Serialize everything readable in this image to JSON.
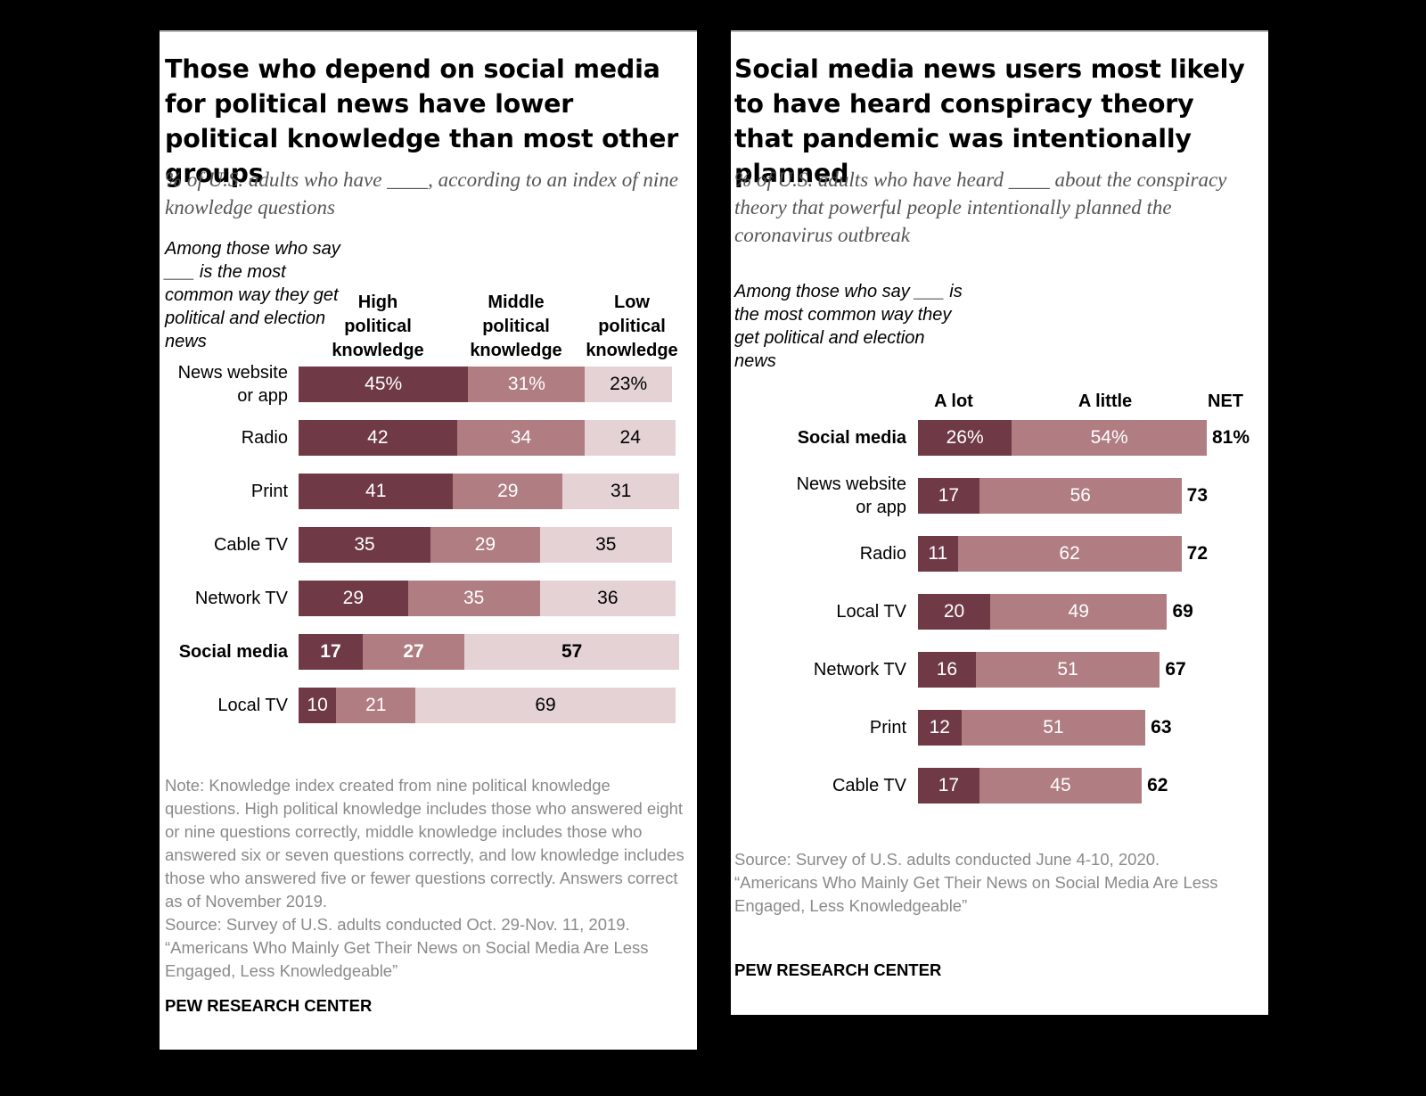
{
  "colors": {
    "high": "#6f3a46",
    "middle": "#b07d83",
    "low": "#e5d2d5",
    "a_lot": "#6f3a46",
    "a_little": "#b07d83",
    "text_dark": "#ffffff",
    "text_light": "#000000"
  },
  "left": {
    "title": "Those who depend on social media for political news have lower political knowledge than most other groups",
    "subtitle": "% of U.S. adults who have ____, according to an index of nine knowledge questions",
    "among": "Among those who say ___ is the most common way they get political and election news",
    "col_heads": [
      "High political knowledge",
      "Middle political knowledge",
      "Low political knowledge"
    ],
    "note": "Note: Knowledge index created from nine political knowledge questions. High political knowledge includes those who answered eight or nine questions correctly, middle knowledge includes those who answered six or seven questions correctly, and low knowledge includes those who answered five or fewer questions correctly. Answers correct as of November 2019.",
    "source": "Source: Survey of U.S. adults conducted Oct. 29-Nov. 11, 2019.",
    "report": "“Americans Who Mainly Get Their News on Social Media Are Less Engaged, Less Knowledgeable”",
    "brand": "PEW RESEARCH CENTER"
  },
  "right": {
    "title": "Social media news users most likely to have heard conspiracy theory that pandemic was intentionally planned",
    "subtitle": "% of U.S. adults who have heard ____ about the conspiracy theory that powerful people intentionally planned the coronavirus outbreak",
    "among": "Among those who say ___ is the most common way they get political and election news",
    "col_heads": [
      "A lot",
      "A little",
      "NET"
    ],
    "source": "Source: Survey of U.S. adults conducted June 4-10, 2020.",
    "report": "“Americans Who Mainly Get Their News on Social Media Are Less Engaged, Less Knowledgeable”",
    "brand": "PEW RESEARCH CENTER"
  },
  "chart_data": [
    {
      "type": "bar",
      "orientation": "horizontal",
      "stacked": true,
      "title": "Those who depend on social media for political news have lower political knowledge than most other groups",
      "categories": [
        "News website or app",
        "Radio",
        "Print",
        "Cable TV",
        "Network TV",
        "Social media",
        "Local TV"
      ],
      "highlight": "Social media",
      "series": [
        {
          "name": "High political knowledge",
          "values": [
            45,
            42,
            41,
            35,
            29,
            17,
            10
          ],
          "labels": [
            "45%",
            "42",
            "41",
            "35",
            "29",
            "17",
            "10"
          ]
        },
        {
          "name": "Middle political knowledge",
          "values": [
            31,
            34,
            29,
            29,
            35,
            27,
            21
          ],
          "labels": [
            "31%",
            "34",
            "29",
            "29",
            "35",
            "27",
            "21"
          ]
        },
        {
          "name": "Low political knowledge",
          "values": [
            23,
            24,
            31,
            35,
            36,
            57,
            69
          ],
          "labels": [
            "23%",
            "24",
            "31",
            "35",
            "36",
            "57",
            "69"
          ]
        }
      ]
    },
    {
      "type": "bar",
      "orientation": "horizontal",
      "stacked": true,
      "title": "Social media news users most likely to have heard conspiracy theory that pandemic was intentionally planned",
      "categories": [
        "Social media",
        "News website or app",
        "Radio",
        "Local TV",
        "Network TV",
        "Print",
        "Cable TV"
      ],
      "highlight": "Social media",
      "series": [
        {
          "name": "A lot",
          "values": [
            26,
            17,
            11,
            20,
            16,
            12,
            17
          ],
          "labels": [
            "26%",
            "17",
            "11",
            "20",
            "16",
            "12",
            "17"
          ]
        },
        {
          "name": "A little",
          "values": [
            54,
            56,
            62,
            49,
            51,
            51,
            45
          ],
          "labels": [
            "54%",
            "56",
            "62",
            "49",
            "51",
            "51",
            "45"
          ]
        }
      ],
      "net": {
        "name": "NET",
        "values": [
          81,
          73,
          72,
          69,
          67,
          63,
          62
        ],
        "labels": [
          "81%",
          "73",
          "72",
          "69",
          "67",
          "63",
          "62"
        ]
      }
    }
  ]
}
